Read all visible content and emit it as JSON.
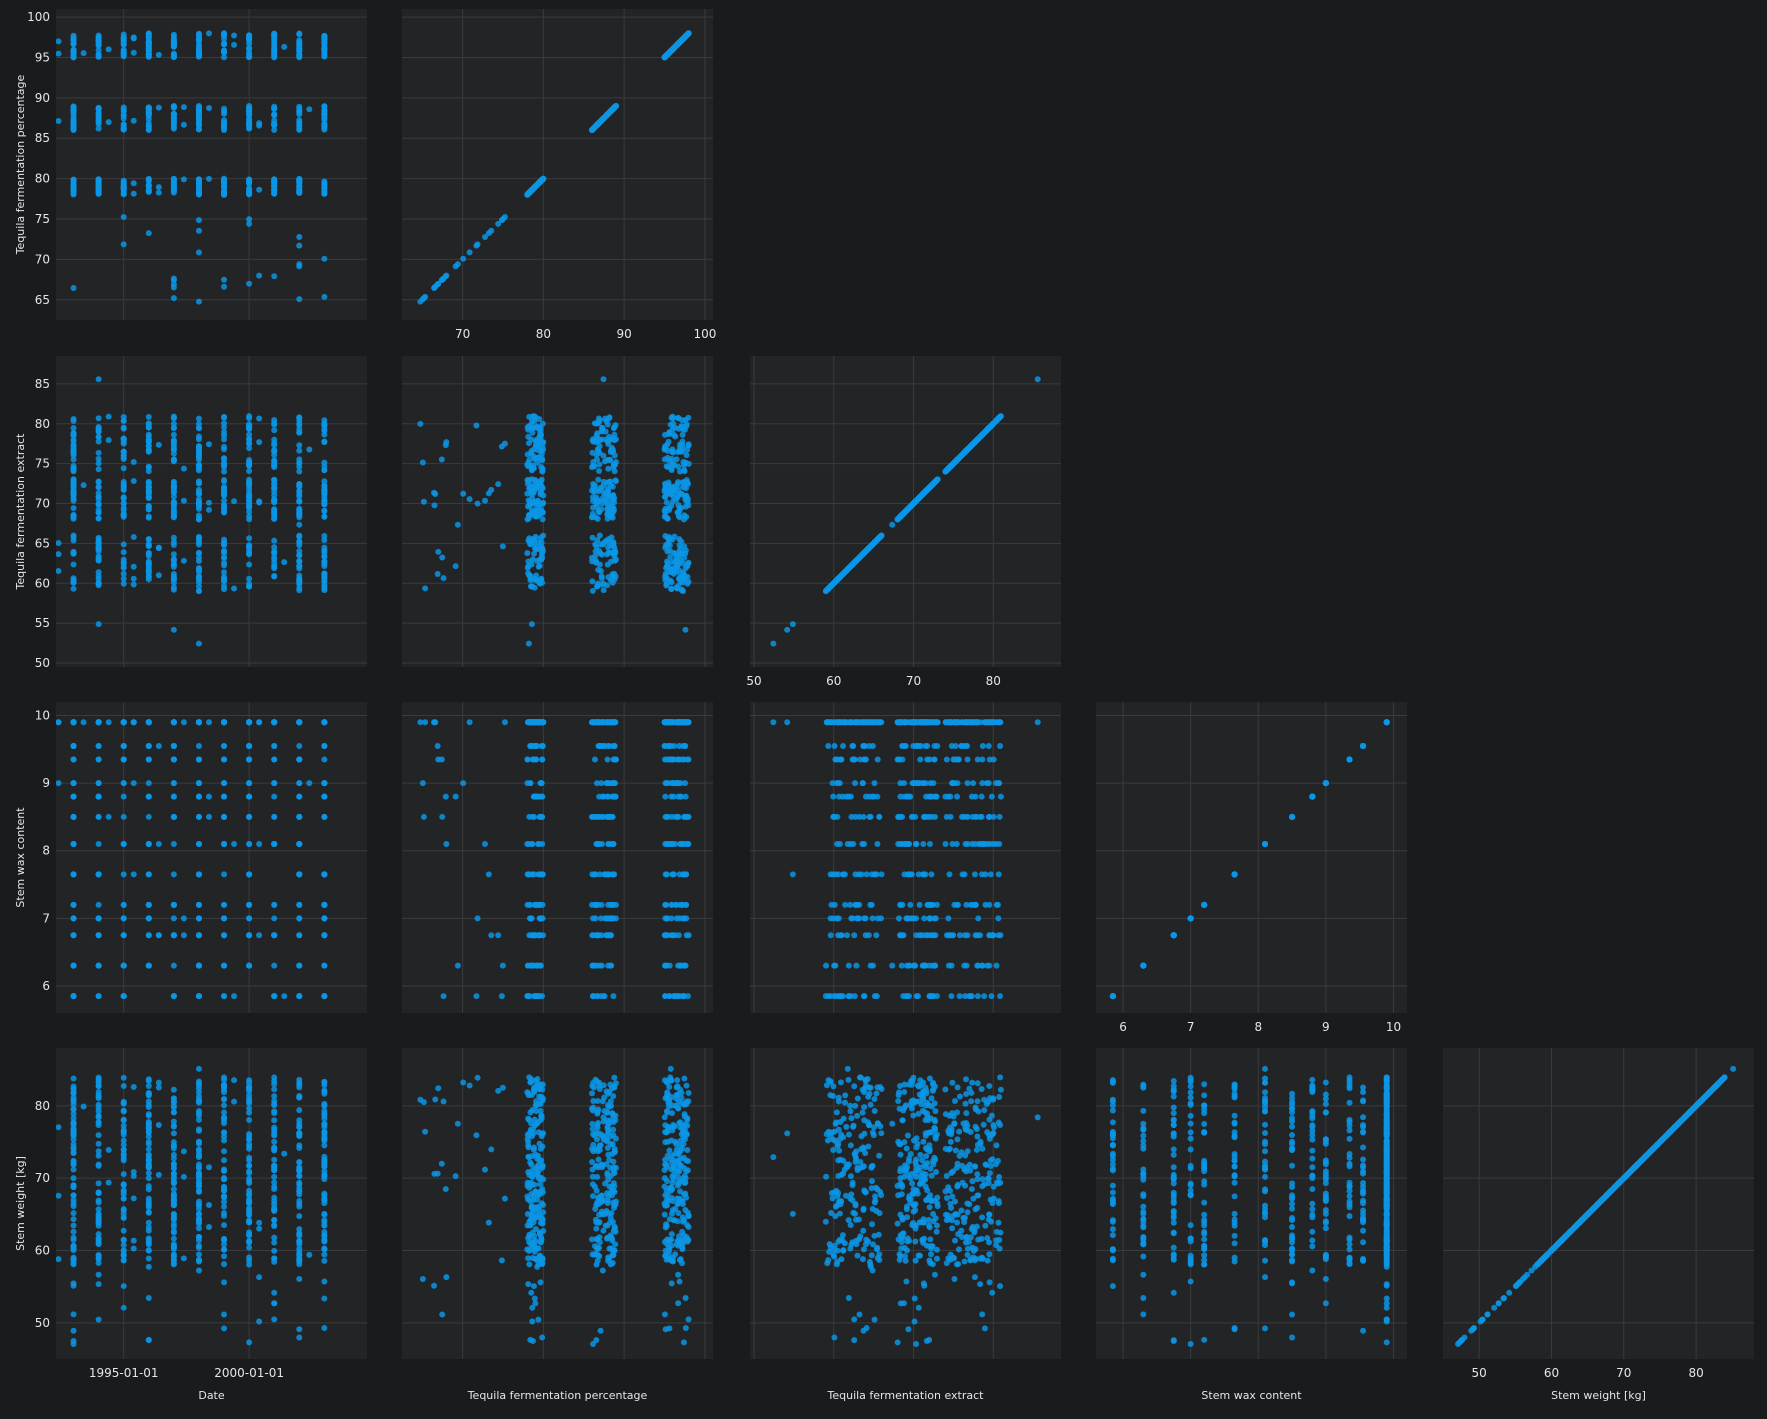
{
  "chart_data": {
    "type": "scatter",
    "subtype": "scatter-matrix (lower triangle incl. diagonal)",
    "marker_color": "#0b95e5",
    "panel_background": "#232426",
    "grid": true,
    "legend": "none",
    "variables": [
      {
        "key": "date",
        "label": "Date",
        "kind": "date",
        "range": [
          1992.3,
          2004.7
        ],
        "ticks": [
          1995,
          2000
        ],
        "tick_labels": [
          "1995-01-01",
          "2000-01-01"
        ]
      },
      {
        "key": "pct",
        "label": "Tequila fermentation percentage",
        "kind": "number",
        "range": [
          62.5,
          101
        ],
        "ticks": [
          70,
          80,
          90,
          100
        ],
        "y_ticks": [
          65,
          70,
          75,
          80,
          85,
          90,
          95,
          100
        ]
      },
      {
        "key": "ext",
        "label": "Tequila fermentation extract",
        "kind": "number",
        "range": [
          49.5,
          88.5
        ],
        "ticks": [
          50,
          60,
          70,
          80
        ],
        "y_ticks": [
          50,
          55,
          60,
          65,
          70,
          75,
          80,
          85
        ]
      },
      {
        "key": "wax",
        "label": "Stem wax content",
        "kind": "number",
        "range": [
          5.6,
          10.2
        ],
        "ticks": [
          6,
          7,
          8,
          9,
          10
        ],
        "y_ticks": [
          6,
          7,
          8,
          9,
          10
        ]
      },
      {
        "key": "wt",
        "label": "Stem weight [kg]",
        "kind": "number",
        "range": [
          45,
          88
        ],
        "ticks": [
          50,
          60,
          70,
          80
        ],
        "y_ticks": [
          50,
          60,
          70,
          80
        ]
      }
    ],
    "x_axis_titles": [
      "Date",
      "Tequila fermentation percentage",
      "Tequila fermentation extract",
      "Stem wax content",
      "Stem weight [kg]"
    ],
    "y_axis_titles": [
      "Tequila fermentation percentage",
      "Tequila fermentation extract",
      "Stem wax content",
      "Stem weight [kg]"
    ],
    "series_sample": {
      "date_years": [
        1993,
        1994,
        1995,
        1996,
        1997,
        1998,
        1999,
        2000,
        2001,
        2002,
        2003
      ],
      "pct_clusters": [
        [
          78,
          80
        ],
        [
          86,
          89
        ],
        [
          95,
          98
        ]
      ],
      "ext_clusters": [
        [
          59,
          66
        ],
        [
          68,
          73
        ],
        [
          74,
          81
        ]
      ],
      "wax_levels": [
        5.85,
        6.3,
        6.75,
        7.0,
        7.2,
        7.65,
        8.1,
        8.5,
        8.8,
        9.0,
        9.35,
        9.55,
        9.9
      ],
      "wt_range": [
        47,
        86
      ],
      "count": 700
    }
  }
}
